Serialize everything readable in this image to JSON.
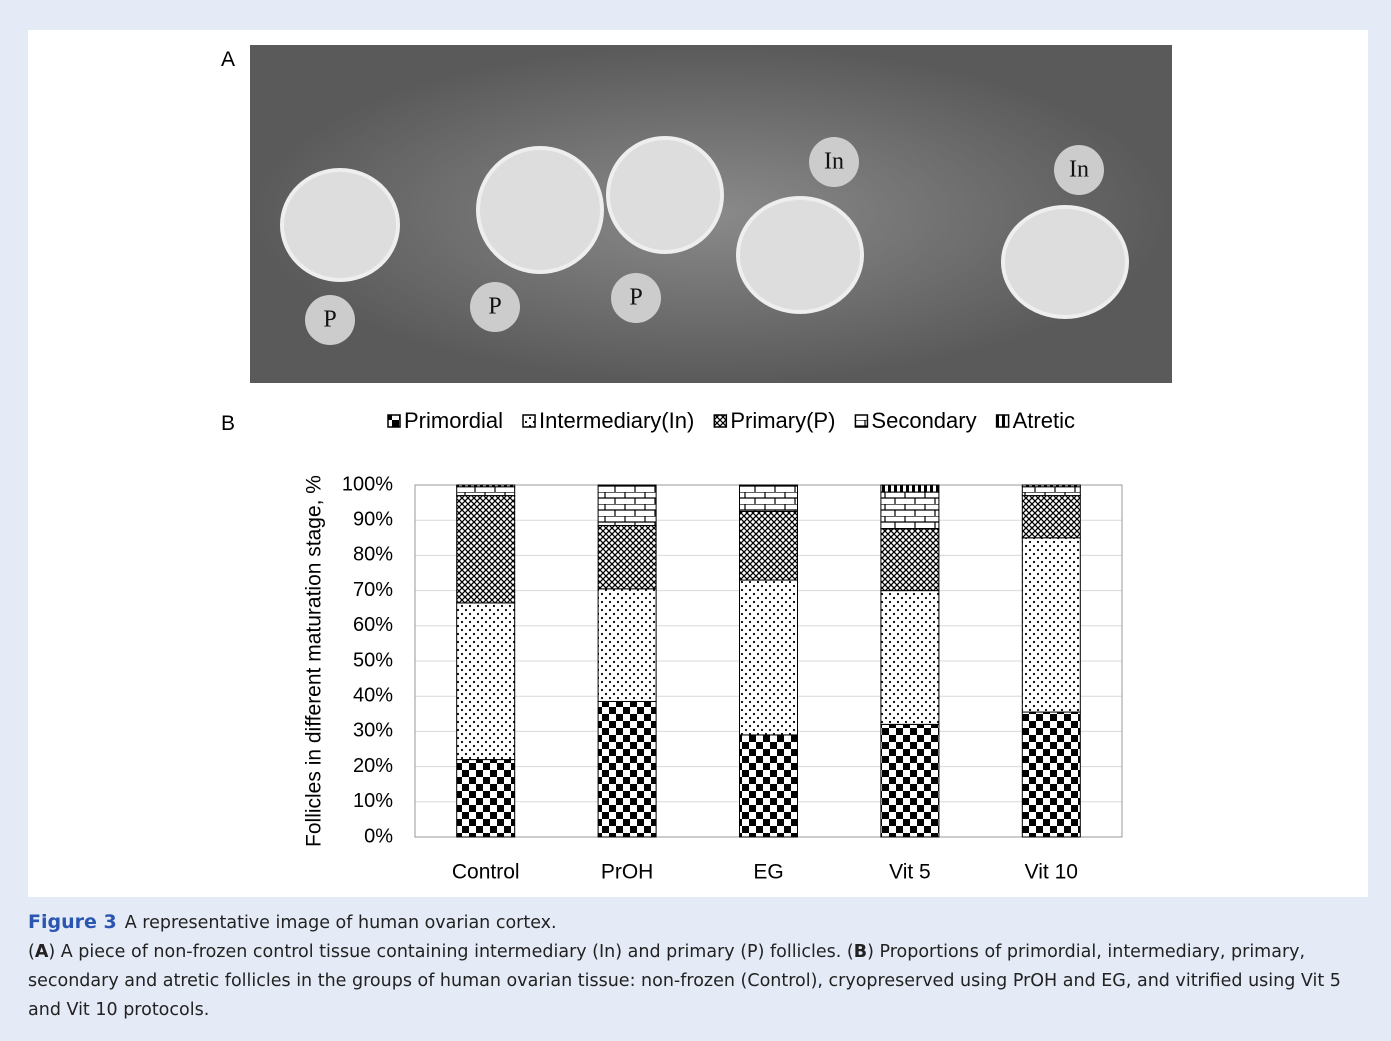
{
  "panel_labels": [
    "A",
    "B"
  ],
  "photo": {
    "labels": [
      "P",
      "P",
      "P",
      "In",
      "In"
    ]
  },
  "chart_data": {
    "type": "stacked_bar",
    "y_label": "Follicles in different maturation stage, %",
    "categories": [
      "Control",
      "PrOH",
      "EG",
      "Vit 5",
      "Vit 10"
    ],
    "series": [
      {
        "name": "Primordial",
        "color": "#000000",
        "values": [
          22,
          38.5,
          29,
          32,
          35.5
        ]
      },
      {
        "name": "Intermediary(In)",
        "color": "#000000",
        "values": [
          44.5,
          32,
          44,
          38,
          49.5
        ]
      },
      {
        "name": "Primary(P)",
        "color": "#000000",
        "values": [
          30.5,
          18,
          19.5,
          17.5,
          12
        ]
      },
      {
        "name": "Secondary",
        "color": "#000000",
        "values": [
          2.5,
          11.5,
          7.5,
          10.5,
          2.5
        ]
      },
      {
        "name": "Atretic",
        "color": "#000000",
        "values": [
          0.5,
          0,
          0,
          2,
          0.5
        ]
      }
    ],
    "ylim": [
      0,
      100
    ],
    "yticks": [
      {
        "value": 0,
        "label": "0%"
      },
      {
        "value": 10,
        "label": "10%"
      },
      {
        "value": 20,
        "label": "20%"
      },
      {
        "value": 30,
        "label": "30%"
      },
      {
        "value": 40,
        "label": "40%"
      },
      {
        "value": 50,
        "label": "50%"
      },
      {
        "value": 60,
        "label": "60%"
      },
      {
        "value": 70,
        "label": "70%"
      },
      {
        "value": 80,
        "label": "80%"
      },
      {
        "value": 90,
        "label": "90%"
      },
      {
        "value": 100,
        "label": "100%"
      }
    ],
    "grid": true,
    "legend": "top"
  },
  "caption": {
    "title": "Figure 3",
    "heading": "A representative image of human ovarian cortex.",
    "body": [
      "(",
      "A",
      ") A piece of non-frozen control tissue containing intermediary (In) and primary (P) follicles. (",
      "B",
      ") Proportions of primordial, intermediary, primary, secondary and atretic follicles in the groups of human ovarian tissue: non-frozen (Control), cryopreserved using PrOH and EG, and vitrified using Vit 5 and Vit 10 protocols."
    ]
  }
}
